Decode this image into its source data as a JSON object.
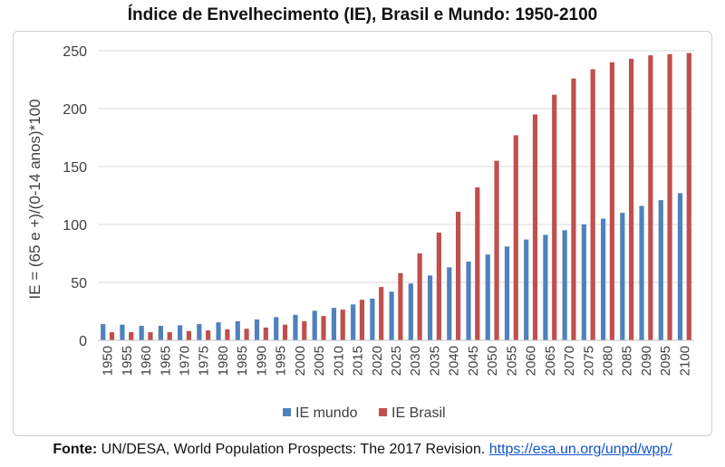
{
  "chart_data": {
    "type": "bar",
    "title": "Índice de Envelhecimento (IE), Brasil e Mundo: 1950-2100",
    "xlabel": "",
    "ylabel": "IE = (65 e +)/(0-14 anos)*100",
    "ylim": [
      0,
      250
    ],
    "yticks": [
      0,
      50,
      100,
      150,
      200,
      250
    ],
    "grid": true,
    "legend": "bottom",
    "categories": [
      "1950",
      "1955",
      "1960",
      "1965",
      "1970",
      "1975",
      "1980",
      "1985",
      "1990",
      "1995",
      "2000",
      "2005",
      "2010",
      "2015",
      "2020",
      "2025",
      "2030",
      "2035",
      "2040",
      "2045",
      "2050",
      "2055",
      "2060",
      "2065",
      "2070",
      "2075",
      "2080",
      "2085",
      "2090",
      "2095",
      "2100"
    ],
    "series": [
      {
        "name": "IE mundo",
        "color": "#4f81bd",
        "values": [
          14,
          13.5,
          12.5,
          12.5,
          13,
          14,
          15.5,
          16.5,
          18,
          20,
          22,
          25.5,
          28,
          31,
          36,
          42,
          49,
          56,
          63,
          68,
          74,
          81,
          87,
          91,
          95,
          100,
          105,
          110,
          116,
          121,
          127
        ]
      },
      {
        "name": "IE Brasil",
        "color": "#c0504d",
        "values": [
          7,
          7,
          7,
          7,
          8,
          8.5,
          9.5,
          10,
          11,
          13.5,
          16.5,
          21,
          26.5,
          35,
          46,
          58,
          75,
          93,
          111,
          132,
          155,
          177,
          195,
          212,
          226,
          234,
          240,
          243,
          246,
          247,
          248
        ]
      }
    ]
  },
  "source": {
    "label": "Fonte:",
    "text": " UN/DESA, World Population Prospects: The 2017 Revision. ",
    "link": "https://esa.un.org/unpd/wpp/"
  }
}
